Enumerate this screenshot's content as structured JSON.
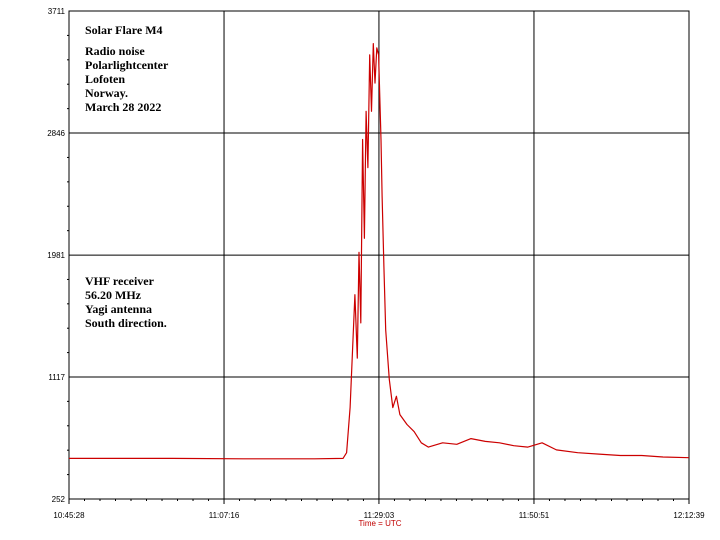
{
  "chart_data": {
    "type": "line",
    "xlabel": "Time = UTC",
    "ylabel": "",
    "x_ticks": [
      "10:45:28",
      "11:07:16",
      "11:29:03",
      "11:50:51",
      "12:12:39"
    ],
    "y_ticks": [
      "252",
      "1117",
      "1981",
      "2846",
      "3711"
    ],
    "xlim": [
      "10:45:28",
      "12:12:39"
    ],
    "ylim": [
      252,
      3711
    ],
    "grid": true,
    "line_color": "#cc0000",
    "annotations": [
      {
        "lines": [
          "Solar Flare M4",
          "",
          "Radio noise",
          "Polarlightcenter",
          "Lofoten",
          "Norway.",
          "March 28 2022"
        ]
      },
      {
        "lines": [
          "VHF receiver",
          "56.20 MHz",
          "Yagi antenna",
          "South direction."
        ]
      }
    ],
    "series": [
      {
        "x": [
          "10:45:28",
          "11:00:00",
          "11:10:00",
          "11:20:00",
          "11:24:00",
          "11:24:30",
          "11:25:00",
          "11:25:20",
          "11:25:40",
          "11:26:00",
          "11:26:15",
          "11:26:30",
          "11:26:45",
          "11:27:00",
          "11:27:15",
          "11:27:30",
          "11:27:45",
          "11:28:00",
          "11:28:15",
          "11:28:30",
          "11:28:45",
          "11:29:00",
          "11:29:10",
          "11:29:20",
          "11:29:30",
          "11:29:45",
          "11:30:00",
          "11:30:30",
          "11:31:00",
          "11:31:30",
          "11:32:00",
          "11:33:00",
          "11:34:00",
          "11:35:00",
          "11:36:00",
          "11:38:00",
          "11:40:00",
          "11:42:00",
          "11:44:00",
          "11:46:00",
          "11:48:00",
          "11:50:00",
          "11:52:00",
          "11:54:00",
          "11:57:00",
          "12:00:00",
          "12:03:00",
          "12:06:00",
          "12:09:00",
          "12:12:39"
        ],
        "y": [
          540,
          540,
          537,
          537,
          540,
          580,
          900,
          1300,
          1700,
          1250,
          2000,
          1500,
          2800,
          2100,
          3000,
          2600,
          3400,
          3000,
          3480,
          3200,
          3450,
          3400,
          3100,
          2800,
          2400,
          1900,
          1450,
          1100,
          900,
          980,
          850,
          780,
          730,
          650,
          620,
          650,
          640,
          680,
          660,
          650,
          630,
          620,
          650,
          600,
          580,
          570,
          560,
          560,
          550,
          545
        ]
      }
    ]
  }
}
